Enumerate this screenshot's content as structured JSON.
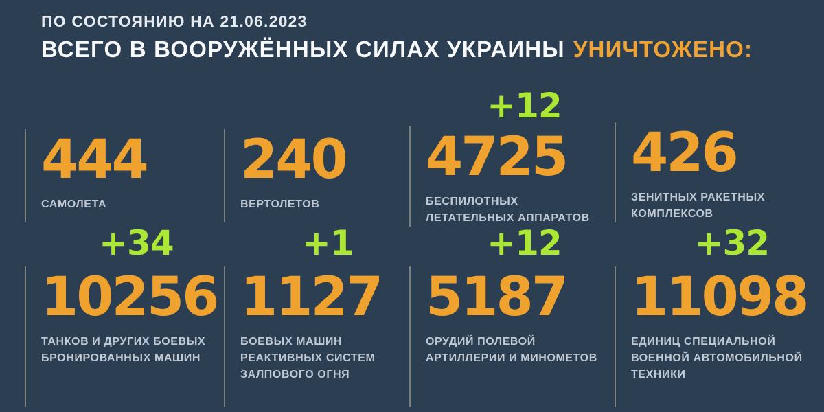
{
  "header": {
    "date_line": "ПО СОСТОЯНИЮ НА 21.06.2023",
    "title_main": "ВСЕГО В ВООРУЖЁННЫХ СИЛАХ УКРАИНЫ",
    "title_accent": "УНИЧТОЖЕНО:"
  },
  "colors": {
    "background": "#2b3e52",
    "number_orange": "#f0a22f",
    "delta_green": "#abe734",
    "label_gray": "#bfc9d5",
    "divider": "#beb4a0"
  },
  "stats": [
    {
      "value": "444",
      "delta": "",
      "label_lines": [
        "САМОЛЕТА",
        "",
        ""
      ]
    },
    {
      "value": "240",
      "delta": "",
      "label_lines": [
        "ВЕРТОЛЕТОВ",
        "",
        ""
      ]
    },
    {
      "value": "4725",
      "delta": "+12",
      "label_lines": [
        "БЕСПИЛОТНЫХ",
        "ЛЕТАТЕЛЬНЫХ АППАРАТОВ",
        ""
      ]
    },
    {
      "value": "426",
      "delta": "",
      "label_lines": [
        "ЗЕНИТНЫХ РАКЕТНЫХ",
        "КОМПЛЕКСОВ",
        ""
      ]
    },
    {
      "value": "10256",
      "delta": "+34",
      "label_lines": [
        "ТАНКОВ И ДРУГИХ БОЕВЫХ",
        "БРОНИРОВАННЫХ МАШИН",
        ""
      ]
    },
    {
      "value": "1127",
      "delta": "+1",
      "label_lines": [
        "БОЕВЫХ МАШИН",
        "РЕАКТИВНЫХ СИСТЕМ",
        "ЗАЛПОВОГО ОГНЯ"
      ]
    },
    {
      "value": "5187",
      "delta": "+12",
      "label_lines": [
        "ОРУДИЙ ПОЛЕВОЙ",
        "АРТИЛЛЕРИИ И МИНОМЕТОВ",
        ""
      ]
    },
    {
      "value": "11098",
      "delta": "+32",
      "label_lines": [
        "ЕДИНИЦ СПЕЦИАЛЬНОЙ",
        "ВОЕННОЙ АВТОМОБИЛЬНОЙ",
        "ТЕХНИКИ"
      ]
    }
  ],
  "chart_data": {
    "type": "table",
    "title": "ВСЕГО В ВООРУЖЁННЫХ СИЛАХ УКРАИНЫ УНИЧТОЖЕНО:",
    "subtitle": "ПО СОСТОЯНИЮ НА 21.06.2023",
    "categories": [
      "самолета",
      "вертолетов",
      "беспилотных летательных аппаратов",
      "зенитных ракетных комплексов",
      "танков и других боевых бронированных машин",
      "боевых машин реактивных систем залпового огня",
      "орудий полевой артиллерии и минометов",
      "единиц специальной военной автомобильной техники"
    ],
    "values": [
      444,
      240,
      4725,
      426,
      10256,
      1127,
      5187,
      11098
    ],
    "daily_increments": [
      null,
      null,
      12,
      null,
      34,
      1,
      12,
      32
    ],
    "layout": "2 rows x 4 columns of stat blocks, increments shown in green above values"
  }
}
